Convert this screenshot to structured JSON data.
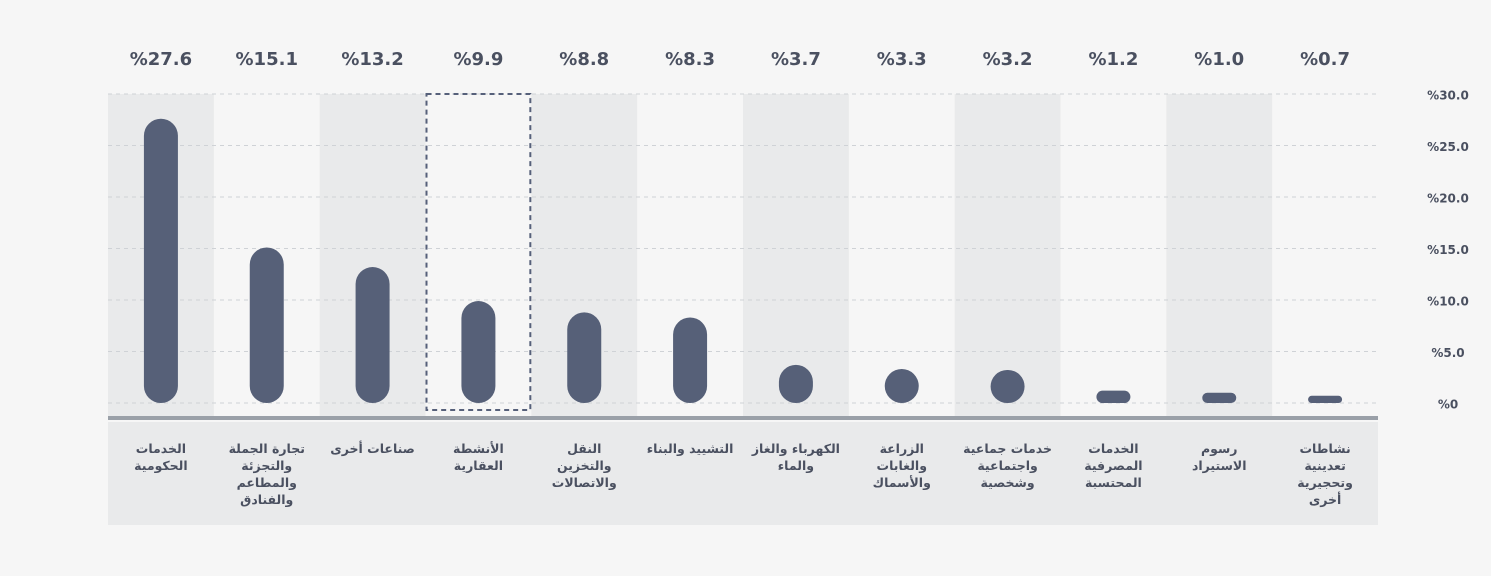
{
  "chart_data": {
    "type": "bar",
    "categories": [
      "الخدمات الحكومية",
      "تجارة الجملة والتجزئة والمطاعم والفنادق",
      "صناعات أخرى",
      "الأنشطة العقارية",
      "النقل والتخزين والاتصالات",
      "التشييد والبناء",
      "الكهرباء والغاز والماء",
      "الزراعة والغابات والأسماك",
      "خدمات جماعية واجتماعية وشخصية",
      "الخدمات المصرفية المحتسبة",
      "رسوم الاستيراد",
      "نشاطات تعدينية وتحجيرية أخرى"
    ],
    "values": [
      27.6,
      15.1,
      13.2,
      9.9,
      8.8,
      8.3,
      3.7,
      3.3,
      3.2,
      1.2,
      1.0,
      0.7
    ],
    "value_labels": [
      "%27.6",
      "%15.1",
      "%13.2",
      "%9.9",
      "%8.8",
      "%8.3",
      "%3.7",
      "%3.3",
      "%3.2",
      "%1.2",
      "%1.0",
      "%0.7"
    ],
    "color": "#566078",
    "ylim": [
      0,
      30
    ],
    "yticks": [
      {
        "value": 0,
        "label": "%0"
      },
      {
        "value": 5,
        "label": "%5.0"
      },
      {
        "value": 10,
        "label": "%10.0"
      },
      {
        "value": 15,
        "label": "%15.0"
      },
      {
        "value": 20,
        "label": "%20.0"
      },
      {
        "value": 25,
        "label": "%25.0"
      },
      {
        "value": 30,
        "label": "%30.0"
      }
    ],
    "grid": true,
    "highlight_index": 3
  }
}
